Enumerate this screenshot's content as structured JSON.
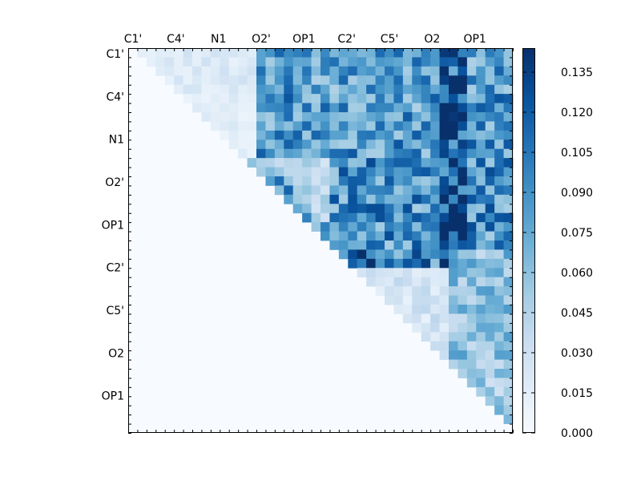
{
  "chart_data": {
    "type": "heatmap",
    "title": "",
    "xlabel": "",
    "ylabel": "",
    "n": 42,
    "x_tick_labels": [
      "C1'",
      "C4'",
      "N1",
      "O2'",
      "OP1",
      "C2'",
      "C5'",
      "O2",
      "OP1"
    ],
    "y_tick_labels": [
      "C1'",
      "C4'",
      "N1",
      "O2'",
      "OP1",
      "C2'",
      "C5'",
      "O2",
      "OP1"
    ],
    "colorbar": {
      "min": 0.0,
      "max": 0.144,
      "colormap": "Blues",
      "tick_values": [
        0.0,
        0.015,
        0.03,
        0.045,
        0.06,
        0.075,
        0.09,
        0.105,
        0.12,
        0.135
      ],
      "tick_labels": [
        "0.000",
        "0.015",
        "0.030",
        "0.045",
        "0.060",
        "0.075",
        "0.090",
        "0.105",
        "0.120",
        "0.135"
      ]
    },
    "matrix_layout": "upper-triangular; diagonal and lower triangle are zero",
    "rows": [
      "00.. 00, 00, 00, 01, 04, 04, 02, 01, 00, 02, 01, 01, 01, 01, 01, 02, 02, 03, 04, 02, 01, 04, 07, 03, 07, 07, 07, 08, 07, 08, 07, 07, 08, 09, 11, 09, 08, 09, 08, 08, 09, 08"
    ]
  }
}
